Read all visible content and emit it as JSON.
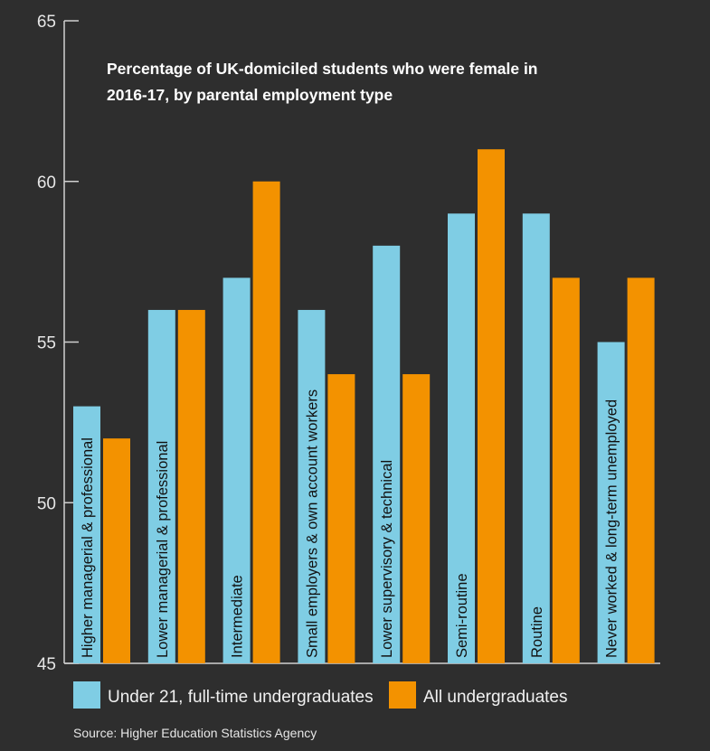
{
  "chart_data": {
    "type": "bar",
    "title": "Percentage of UK-domiciled students who were female in 2016-17, by parental employment type",
    "title_lines": [
      "Percentage of UK-domiciled students who were female in",
      "2016-17, by parental employment type"
    ],
    "categories": [
      "Higher managerial & professional",
      "Lower managerial & professional",
      "Intermediate",
      "Small employers & own account workers",
      "Lower supervisory & technical",
      "Semi-routine",
      "Routine",
      "Never worked & long-term unemployed"
    ],
    "series": [
      {
        "name": "Under 21, full-time undergraduates",
        "color": "#7fcde4",
        "values": [
          53,
          56,
          57,
          56,
          58,
          59,
          59,
          55
        ]
      },
      {
        "name": "All undergraduates",
        "color": "#f39200",
        "values": [
          52,
          56,
          60,
          54,
          54,
          61,
          57,
          57
        ]
      }
    ],
    "ylim": [
      45,
      65
    ],
    "yticks": [
      "45",
      "50",
      "55",
      "60",
      "65"
    ],
    "xlabel": "",
    "ylabel": "",
    "grid": false,
    "legend_placement": "bottom",
    "source": "Source: Higher Education Statistics Agency"
  }
}
